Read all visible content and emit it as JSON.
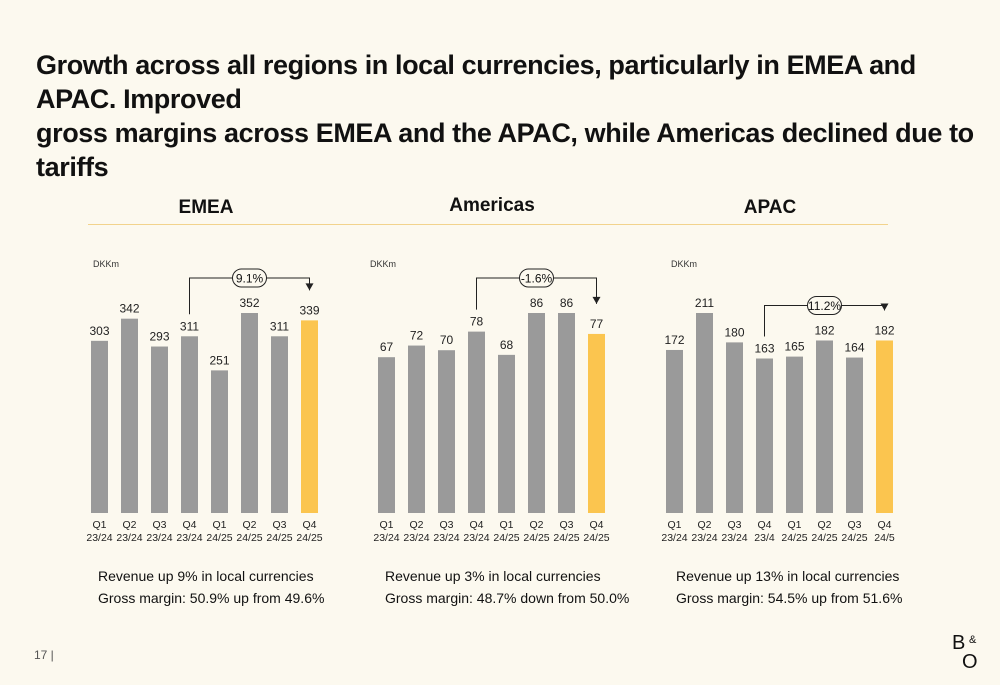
{
  "headline": {
    "line1": "Growth across all regions in local currencies, particularly in EMEA and APAC. Improved",
    "line2": "gross margins across EMEA and the APAC, while Americas declined due to tariffs"
  },
  "footer": {
    "page": "17 |"
  },
  "logo": {
    "top": "B",
    "amp": "&",
    "bottom": "O"
  },
  "colors": {
    "bar": "#9a9a9a",
    "highlight": "#fbc54f",
    "divider": "#f2d38c",
    "background": "#fcf9ef"
  },
  "chart_data": [
    {
      "type": "bar",
      "title": "EMEA",
      "unit": "DKKm",
      "categories": [
        [
          "Q1",
          "23/24"
        ],
        [
          "Q2",
          "23/24"
        ],
        [
          "Q3",
          "23/24"
        ],
        [
          "Q4",
          "23/24"
        ],
        [
          "Q1",
          "24/25"
        ],
        [
          "Q2",
          "24/25"
        ],
        [
          "Q3",
          "24/25"
        ],
        [
          "Q4",
          "24/25"
        ]
      ],
      "values": [
        303,
        342,
        293,
        311,
        251,
        352,
        311,
        339
      ],
      "highlight_index": 7,
      "ylim": [
        0,
        400
      ],
      "growth_label": "9.1%",
      "growth_from_index": 3,
      "growth_to_index": 7,
      "caption": [
        "Revenue up 9% in local currencies",
        "Gross margin: 50.9% up from 49.6%"
      ]
    },
    {
      "type": "bar",
      "title": "Americas",
      "unit": "DKKm",
      "categories": [
        [
          "Q1",
          "23/24"
        ],
        [
          "Q2",
          "23/24"
        ],
        [
          "Q3",
          "23/24"
        ],
        [
          "Q4",
          "23/24"
        ],
        [
          "Q1",
          "24/25"
        ],
        [
          "Q2",
          "24/25"
        ],
        [
          "Q3",
          "24/25"
        ],
        [
          "Q4",
          "24/25"
        ]
      ],
      "values": [
        67,
        72,
        70,
        78,
        68,
        86,
        86,
        77
      ],
      "highlight_index": 7,
      "ylim": [
        0,
        100
      ],
      "growth_label": "-1.6%",
      "growth_from_index": 3,
      "growth_to_index": 7,
      "caption": [
        "Revenue up 3% in local currencies",
        "Gross margin: 48.7% down from 50.0%"
      ]
    },
    {
      "type": "bar",
      "title": "APAC",
      "unit": "DKKm",
      "categories": [
        [
          "Q1",
          "23/24"
        ],
        [
          "Q2",
          "23/24"
        ],
        [
          "Q3",
          "23/24"
        ],
        [
          "Q4",
          "23/4"
        ],
        [
          "Q1",
          "24/25"
        ],
        [
          "Q2",
          "24/25"
        ],
        [
          "Q3",
          "24/25"
        ],
        [
          "Q4",
          "24/5"
        ]
      ],
      "values": [
        172,
        211,
        180,
        163,
        165,
        182,
        164,
        182
      ],
      "highlight_index": 7,
      "ylim": [
        0,
        240
      ],
      "growth_label": "11.2%",
      "growth_from_index": 3,
      "growth_to_index": 7,
      "caption": [
        "Revenue up 13% in local currencies",
        "Gross margin:  54.5% up from 51.6%"
      ]
    }
  ]
}
